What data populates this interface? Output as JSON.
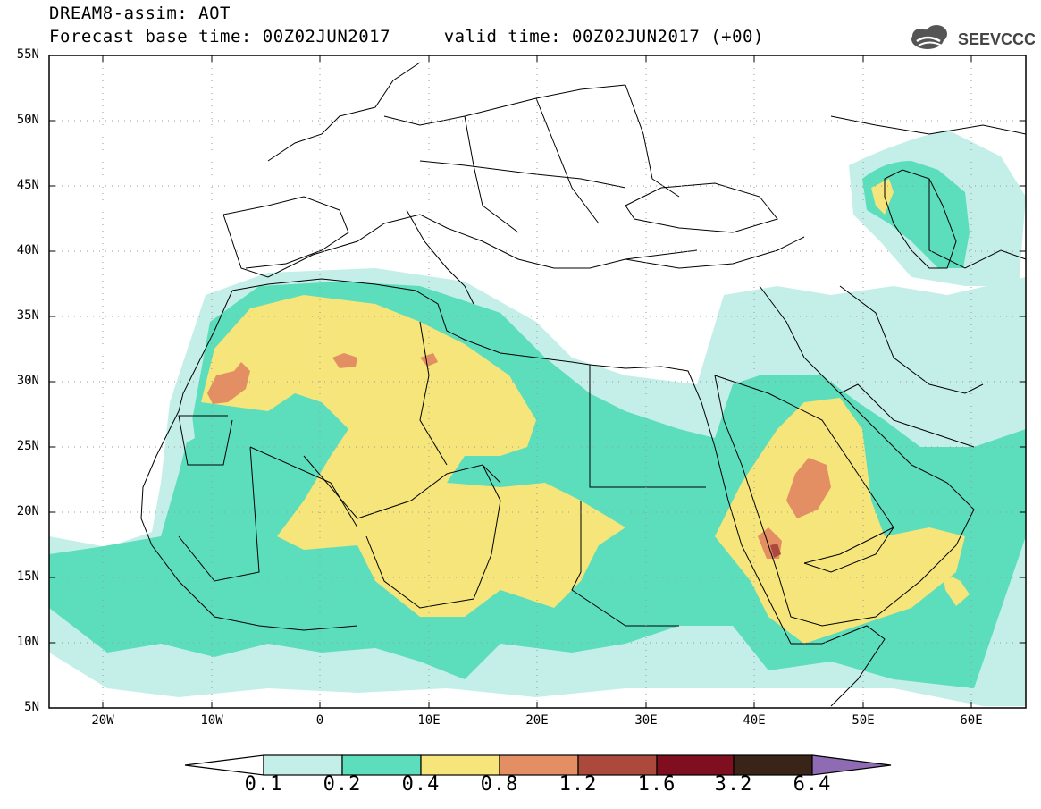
{
  "header": {
    "title_line1": "DREAM8-assim: AOT",
    "title_line2": "Forecast base time: 00Z02JUN2017     valid time: 00Z02JUN2017 (+00)",
    "logo_text": "SEEVCCC"
  },
  "map": {
    "lat_labels": [
      "55N",
      "50N",
      "45N",
      "40N",
      "35N",
      "30N",
      "25N",
      "20N",
      "15N",
      "10N",
      "5N"
    ],
    "lon_labels": [
      "20W",
      "10W",
      "0",
      "10E",
      "20E",
      "30E",
      "40E",
      "50E",
      "60E"
    ],
    "extent": {
      "lon_min": -25,
      "lon_max": 65,
      "lat_min": 5,
      "lat_max": 55
    },
    "colors": {
      "land_bg": "#ffffff",
      "border": "#000000",
      "grid": "#9a9a9a"
    }
  },
  "colorbar": {
    "labels": [
      "0.1",
      "0.2",
      "0.4",
      "0.8",
      "1.2",
      "1.6",
      "3.2",
      "6.4"
    ],
    "colors": [
      "#ffffff",
      "#c4efe9",
      "#5cddbc",
      "#f5e57a",
      "#e38e63",
      "#ab4a3c",
      "#7f0f1f",
      "#3a2418",
      "#8e6bb3"
    ]
  }
}
